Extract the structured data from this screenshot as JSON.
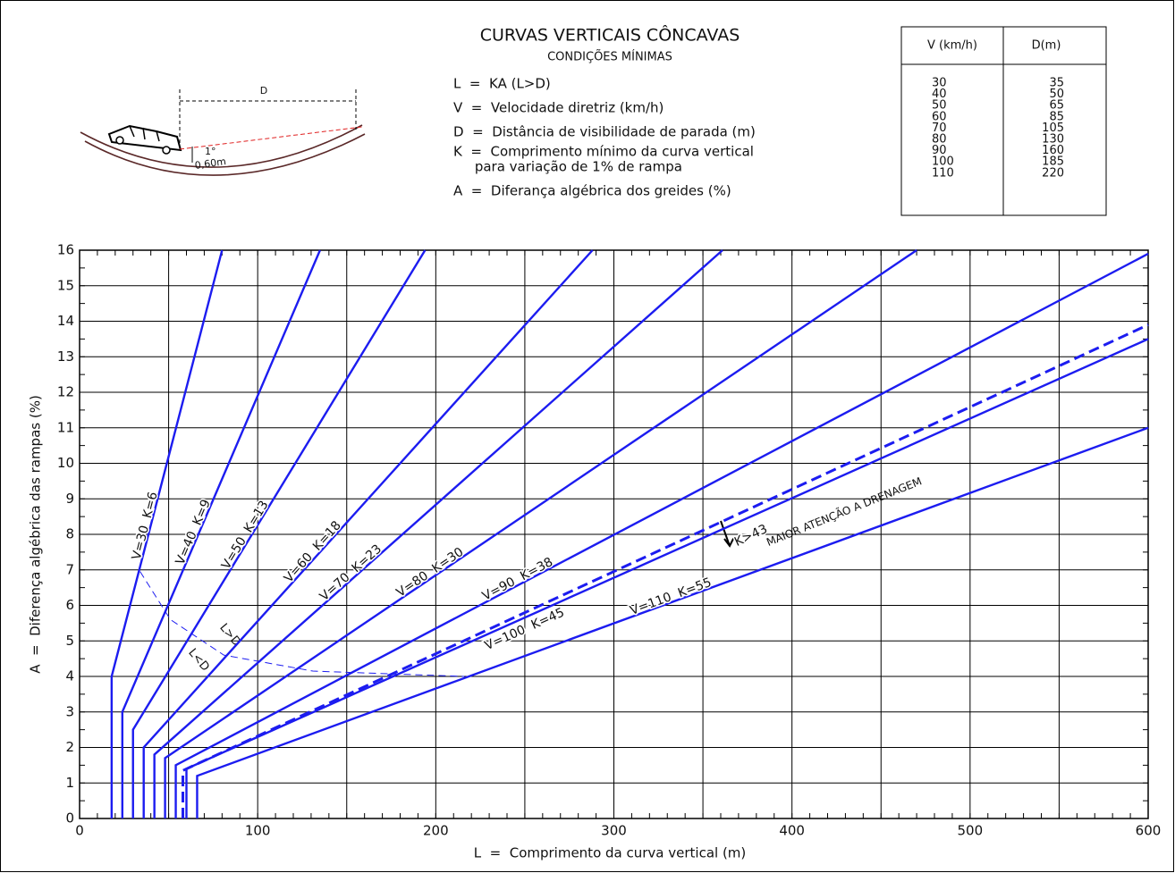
{
  "chart_data": {
    "type": "line",
    "title": "CURVAS VERTICAIS CÔNCAVAS",
    "subtitle": "CONDIÇÕES MÍNIMAS",
    "definitions": [
      "L  =  KA (L>D)",
      "V  =  Velocidade diretriz (km/h)",
      "D  =  Distância de visibilidade de parada (m)",
      "K  =  Comprimento mínimo da curva vertical",
      "     para variação de 1% de rampa",
      "A  =  Diferança algébrica dos greides (%)"
    ],
    "table": {
      "header": [
        "V (km/h)",
        "D(m)"
      ],
      "rows": [
        [
          "30",
          "35"
        ],
        [
          "40",
          "50"
        ],
        [
          "50",
          "65"
        ],
        [
          "60",
          "85"
        ],
        [
          "70",
          "105"
        ],
        [
          "80",
          "130"
        ],
        [
          "90",
          "160"
        ],
        [
          "100",
          "185"
        ],
        [
          "110",
          "220"
        ]
      ]
    },
    "diagram_labels": [
      "D",
      "1°",
      "0,60m"
    ],
    "x_label": "L  =  Comprimento da curva vertical (m)",
    "y_label": "A  =  Diferença algébrica das rampas (%)",
    "xlim": [
      0,
      600
    ],
    "ylim": [
      0,
      16
    ],
    "xticks": [
      0,
      100,
      200,
      300,
      400,
      500,
      600
    ],
    "minor_xticks": [
      50,
      150,
      250,
      350,
      450,
      550
    ],
    "yticks": [
      0,
      1,
      2,
      3,
      4,
      5,
      6,
      7,
      8,
      9,
      10,
      11,
      12,
      13,
      14,
      15,
      16
    ],
    "grid": true,
    "annotations": [
      "L>D",
      "L<D",
      "MAIOR ATENÇÃO A DRENAGEM"
    ],
    "series": [
      {
        "name": "V=30  K=6",
        "color": "#1c1cf0",
        "x": [
          18,
          18,
          80
        ],
        "values": [
          0,
          4,
          16
        ]
      },
      {
        "name": "V=40  K=9",
        "color": "#1c1cf0",
        "x": [
          24,
          24,
          135
        ],
        "values": [
          0,
          3,
          16
        ]
      },
      {
        "name": "V=50  K=13",
        "color": "#1c1cf0",
        "x": [
          30,
          30,
          194
        ],
        "values": [
          0,
          2.5,
          16
        ]
      },
      {
        "name": "V=60  K=18",
        "color": "#1c1cf0",
        "x": [
          36,
          36,
          288
        ],
        "values": [
          0,
          2,
          16
        ]
      },
      {
        "name": "V=70  K=23",
        "color": "#1c1cf0",
        "x": [
          42,
          42,
          361
        ],
        "values": [
          0,
          1.8,
          16
        ]
      },
      {
        "name": "V=80  K=30",
        "color": "#1c1cf0",
        "x": [
          48,
          48,
          470
        ],
        "values": [
          0,
          1.7,
          16
        ]
      },
      {
        "name": "V=90  K=38",
        "color": "#1c1cf0",
        "x": [
          54,
          54,
          600
        ],
        "values": [
          0,
          1.5,
          15.9
        ]
      },
      {
        "name": "V=100  K=45",
        "color": "#1c1cf0",
        "x": [
          60,
          60,
          600
        ],
        "values": [
          0,
          1.4,
          13.5
        ]
      },
      {
        "name": "V=110  K=55",
        "color": "#1c1cf0",
        "x": [
          66,
          66,
          600
        ],
        "values": [
          0,
          1.2,
          11
        ]
      },
      {
        "name": "K>43",
        "color": "#1c1cf0",
        "style": "dashed",
        "x": [
          58,
          58,
          600
        ],
        "values": [
          0,
          1.35,
          13.9
        ]
      },
      {
        "color": "#1c1cf0",
        "style": "thin-dashed",
        "x": [
          34,
          51,
          81,
          131,
          216
        ],
        "values": [
          6.95,
          5.6,
          4.6,
          4.15,
          4.0
        ]
      }
    ]
  }
}
